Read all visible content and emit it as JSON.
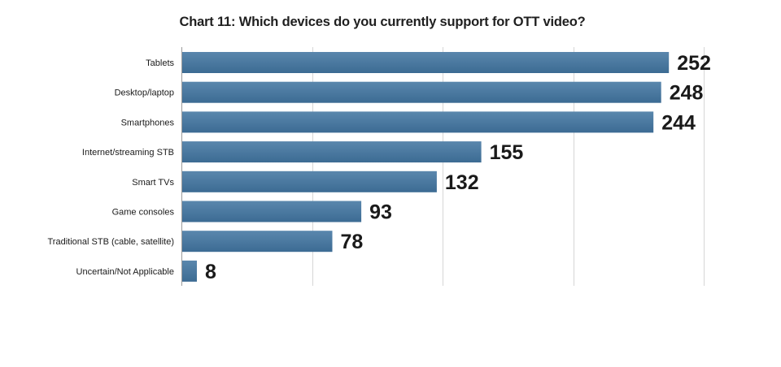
{
  "chart_data": {
    "type": "bar",
    "orientation": "horizontal",
    "title": "Chart 11: Which devices do you currently support for OTT video?",
    "categories": [
      "Tablets",
      "Desktop/laptop",
      "Smartphones",
      "Internet/streaming STB",
      "Smart TVs",
      "Game consoles",
      "Traditional STB (cable, satellite)",
      "Uncertain/Not Applicable"
    ],
    "values": [
      252,
      248,
      244,
      155,
      132,
      93,
      78,
      8
    ],
    "data_labels": [
      "252",
      "248",
      "244",
      "155",
      "132",
      "93",
      "78",
      "8"
    ],
    "xlim": [
      0,
      270
    ],
    "gridlines": [
      0,
      67.5,
      135,
      202.5,
      270
    ],
    "grid": true,
    "bar_color": "#3c6b93",
    "bar_color_light": "#5a87ad",
    "grid_color": "#d6d6d6"
  }
}
